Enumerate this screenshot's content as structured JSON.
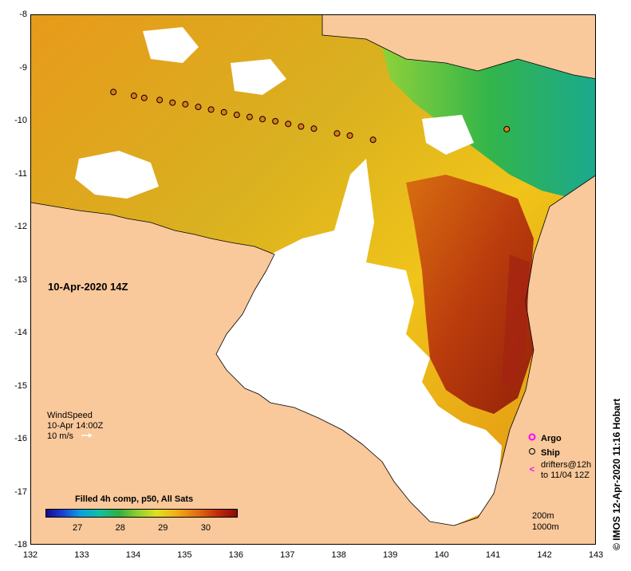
{
  "map": {
    "x_ticks": [
      "132",
      "133",
      "134",
      "135",
      "136",
      "137",
      "138",
      "139",
      "140",
      "141",
      "142",
      "143"
    ],
    "y_ticks": [
      "-8",
      "-9",
      "-10",
      "-11",
      "-12",
      "-13",
      "-14",
      "-15",
      "-16",
      "-17",
      "-18"
    ],
    "lon_range": [
      132,
      143
    ],
    "lat_range": [
      -8,
      -18
    ],
    "land_color": "#f9c89b",
    "ship_track": [
      {
        "lon": 133.6,
        "lat": -9.45
      },
      {
        "lon": 134.0,
        "lat": -9.52
      },
      {
        "lon": 134.2,
        "lat": -9.56
      },
      {
        "lon": 134.5,
        "lat": -9.6
      },
      {
        "lon": 134.75,
        "lat": -9.65
      },
      {
        "lon": 135.0,
        "lat": -9.68
      },
      {
        "lon": 135.25,
        "lat": -9.73
      },
      {
        "lon": 135.5,
        "lat": -9.78
      },
      {
        "lon": 135.75,
        "lat": -9.83
      },
      {
        "lon": 136.0,
        "lat": -9.88
      },
      {
        "lon": 136.25,
        "lat": -9.92
      },
      {
        "lon": 136.5,
        "lat": -9.96
      },
      {
        "lon": 136.75,
        "lat": -10.0
      },
      {
        "lon": 137.0,
        "lat": -10.05
      },
      {
        "lon": 137.25,
        "lat": -10.1
      },
      {
        "lon": 137.5,
        "lat": -10.14
      },
      {
        "lon": 137.95,
        "lat": -10.23
      },
      {
        "lon": 138.2,
        "lat": -10.27
      },
      {
        "lon": 138.65,
        "lat": -10.35
      },
      {
        "lon": 141.25,
        "lat": -10.15
      }
    ]
  },
  "date_label": "10-Apr-2020 14Z",
  "wind": {
    "title": "WindSpeed",
    "time": "10-Apr 14:00Z",
    "scale": "10 m/s"
  },
  "legend": {
    "argo": "Argo",
    "ship": "Ship",
    "drifters_line1": "drifters@12h",
    "drifters_line2": "to 11/04 12Z",
    "argo_color": "#ff00ff",
    "drifter_color": "#ff00ff"
  },
  "colorbar": {
    "title": "Filled 4h comp, p50, All Sats",
    "labels": [
      "27",
      "28",
      "29",
      "30"
    ],
    "range": [
      26.25,
      30.75
    ]
  },
  "scale_note": {
    "line1": "200m",
    "line2": "1000m"
  },
  "credit": "© IMOS 12-Apr-2020 11:16 Hobart"
}
